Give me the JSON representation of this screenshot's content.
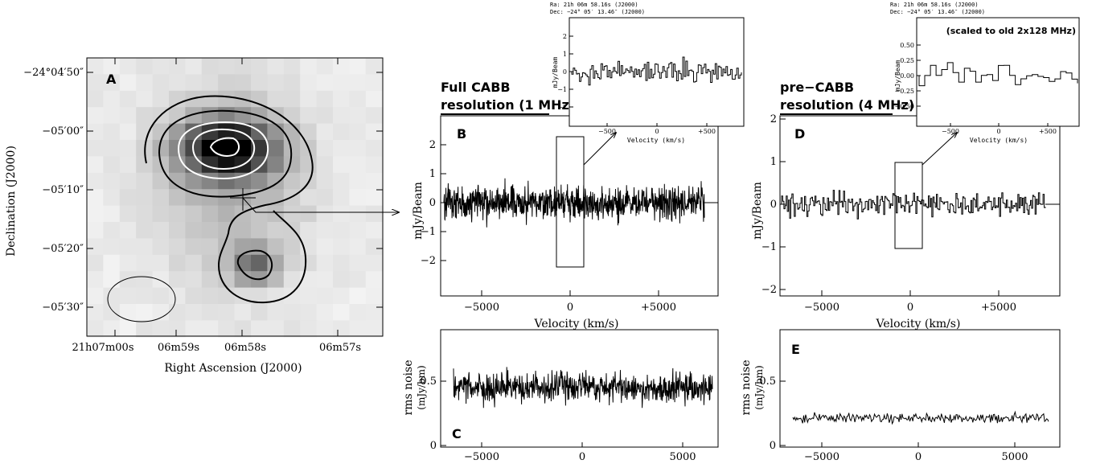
{
  "panel_a": {
    "label": "A",
    "ylabel": "Declination (J2000)",
    "xlabel": "Right Ascension (J2000)",
    "dec_ticks": [
      "−24°04′50″",
      "−05′00″",
      "−05′10″",
      "−05′20″",
      "−05′30″"
    ],
    "ra_ticks": [
      "21h07m00s",
      "06m59s",
      "06m58s",
      "06m57s"
    ]
  },
  "headings": {
    "b_line1": "Full CABB",
    "b_line2": "resolution (1 MHz)",
    "d_line1": "pre−CABB",
    "d_line2": "resolution (4 MHz)"
  },
  "insets": {
    "coord_ra": "Ra: 21h 06m 58.16s (J2000)",
    "coord_dec": "Dec: −24° 05′ 13.46″ (J2000)",
    "ylabel": "mJy/Beam",
    "xlabel": "Velocity (km/s)",
    "b_yticks": [
      "2",
      "1",
      "0",
      "−1",
      "−2"
    ],
    "d_yticks": [
      "0.50",
      "0.25",
      "0.00",
      "−0.25",
      "−0.50"
    ],
    "xticks": [
      "−500",
      "0",
      "+500"
    ],
    "d_note": "(scaled to old 2x128 MHz)"
  },
  "panel_b": {
    "label": "B",
    "ylabel": "mJy/Beam",
    "xlabel": "Velocity (km/s)",
    "yticks": [
      "2",
      "1",
      "0",
      "−1",
      "−2"
    ],
    "xticks": [
      "−5000",
      "0",
      "+5000"
    ]
  },
  "panel_d": {
    "label": "D",
    "ylabel": "mJy/Beam",
    "xlabel": "Velocity (km/s)",
    "yticks": [
      "2",
      "1",
      "0",
      "−1",
      "−2"
    ],
    "xticks": [
      "−5000",
      "0",
      "+5000"
    ]
  },
  "panel_c": {
    "label": "C",
    "ylabel": "rms noise",
    "yunit": "(mJy/bm)",
    "yticks": [
      "0.5",
      "0"
    ],
    "xticks": [
      "−5000",
      "0",
      "5000"
    ]
  },
  "panel_e": {
    "label": "E",
    "ylabel": "rms noise",
    "yunit": "(mJy/bm)",
    "yticks": [
      "0.5",
      "0"
    ],
    "xticks": [
      "−5000",
      "0",
      "5000"
    ]
  }
}
